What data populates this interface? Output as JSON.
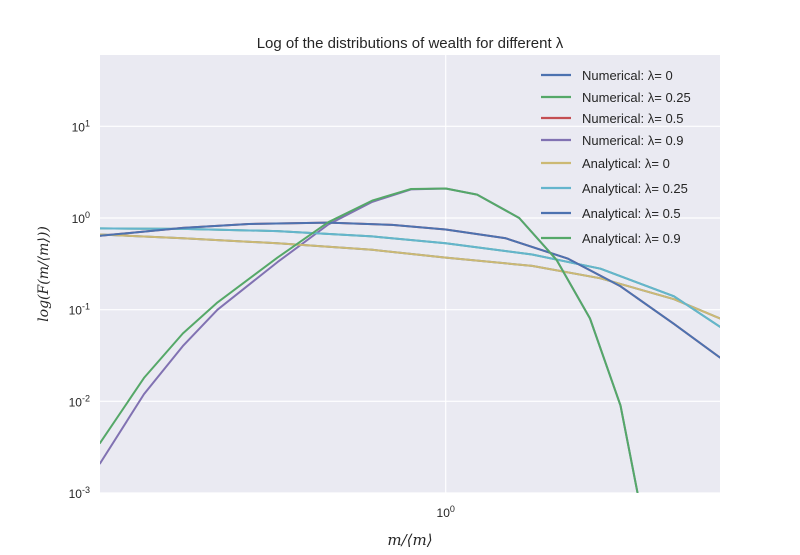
{
  "chart_data": {
    "type": "line",
    "title": "Log of the distributions of wealth for different λ",
    "xlabel": "m/⟨m⟩",
    "ylabel": "log(F(m/⟨m⟩))",
    "xscale": "log",
    "yscale": "log",
    "xlim": [
      0.35,
      2.3
    ],
    "ylim": [
      0.001,
      60
    ],
    "x_ticks": [
      {
        "value": 1,
        "label": "10",
        "exp": "0"
      }
    ],
    "y_ticks": [
      {
        "value": 0.001,
        "label": "10",
        "exp": "-3"
      },
      {
        "value": 0.01,
        "label": "10",
        "exp": "-2"
      },
      {
        "value": 0.1,
        "label": "10",
        "exp": "-1"
      },
      {
        "value": 1,
        "label": "10",
        "exp": "0"
      },
      {
        "value": 10,
        "label": "10",
        "exp": "1"
      }
    ],
    "grid": true,
    "background": "#eaeaf2",
    "legend_position": "top-right",
    "series": [
      {
        "name": "Numerical: λ= 0",
        "color": "#4c72b0",
        "lambda": 0,
        "kind": "numerical",
        "x": [
          0.35,
          0.45,
          0.6,
          0.8,
          1.0,
          1.3,
          1.6,
          2.0,
          2.3
        ],
        "y": [
          0.66,
          0.6,
          0.53,
          0.45,
          0.37,
          0.3,
          0.22,
          0.13,
          0.08
        ]
      },
      {
        "name": "Numerical: λ= 0.25",
        "color": "#55a868",
        "lambda": 0.25,
        "kind": "numerical",
        "x": [
          0.35,
          0.45,
          0.6,
          0.8,
          1.0,
          1.3,
          1.6,
          2.0,
          2.3
        ],
        "y": [
          0.77,
          0.76,
          0.72,
          0.63,
          0.53,
          0.4,
          0.28,
          0.14,
          0.065
        ]
      },
      {
        "name": "Numerical: λ= 0.5",
        "color": "#c44e52",
        "lambda": 0.5,
        "kind": "numerical",
        "x": [
          0.35,
          0.45,
          0.55,
          0.7,
          0.85,
          1.0,
          1.2,
          1.45,
          1.7,
          2.0,
          2.3
        ],
        "y": [
          0.64,
          0.78,
          0.86,
          0.89,
          0.84,
          0.75,
          0.6,
          0.36,
          0.18,
          0.07,
          0.03
        ]
      },
      {
        "name": "Numerical: λ= 0.9",
        "color": "#8172b2",
        "lambda": 0.9,
        "kind": "numerical",
        "x": [
          0.35,
          0.4,
          0.45,
          0.5,
          0.6,
          0.7,
          0.8,
          0.9,
          1.0,
          1.1,
          1.25,
          1.4,
          1.55,
          1.7,
          1.8
        ],
        "y": [
          0.0021,
          0.012,
          0.04,
          0.1,
          0.33,
          0.85,
          1.5,
          2.05,
          2.1,
          1.8,
          1.0,
          0.35,
          0.08,
          0.009,
          0.0008
        ]
      },
      {
        "name": "Analytical: λ= 0",
        "color": "#ccb974",
        "lambda": 0,
        "kind": "analytical",
        "x": [
          0.35,
          0.45,
          0.6,
          0.8,
          1.0,
          1.3,
          1.6,
          2.0,
          2.3
        ],
        "y": [
          0.66,
          0.6,
          0.53,
          0.45,
          0.37,
          0.3,
          0.22,
          0.13,
          0.08
        ]
      },
      {
        "name": "Analytical: λ= 0.25",
        "color": "#64b5cd",
        "lambda": 0.25,
        "kind": "analytical",
        "x": [
          0.35,
          0.45,
          0.6,
          0.8,
          1.0,
          1.3,
          1.6,
          2.0,
          2.3
        ],
        "y": [
          0.77,
          0.76,
          0.72,
          0.63,
          0.53,
          0.4,
          0.28,
          0.14,
          0.065
        ]
      },
      {
        "name": "Analytical: λ= 0.5",
        "color": "#4c72b0",
        "lambda": 0.5,
        "kind": "analytical",
        "x": [
          0.35,
          0.45,
          0.55,
          0.7,
          0.85,
          1.0,
          1.2,
          1.45,
          1.7,
          2.0,
          2.3
        ],
        "y": [
          0.64,
          0.78,
          0.86,
          0.89,
          0.84,
          0.75,
          0.6,
          0.36,
          0.18,
          0.07,
          0.03
        ]
      },
      {
        "name": "Analytical: λ= 0.9",
        "color": "#55a868",
        "lambda": 0.9,
        "kind": "analytical",
        "x": [
          0.35,
          0.4,
          0.45,
          0.5,
          0.6,
          0.7,
          0.8,
          0.9,
          1.0,
          1.1,
          1.25,
          1.4,
          1.55,
          1.7,
          1.8
        ],
        "y": [
          0.0035,
          0.018,
          0.055,
          0.12,
          0.37,
          0.9,
          1.55,
          2.07,
          2.1,
          1.8,
          1.0,
          0.35,
          0.08,
          0.009,
          0.0008
        ]
      }
    ]
  }
}
